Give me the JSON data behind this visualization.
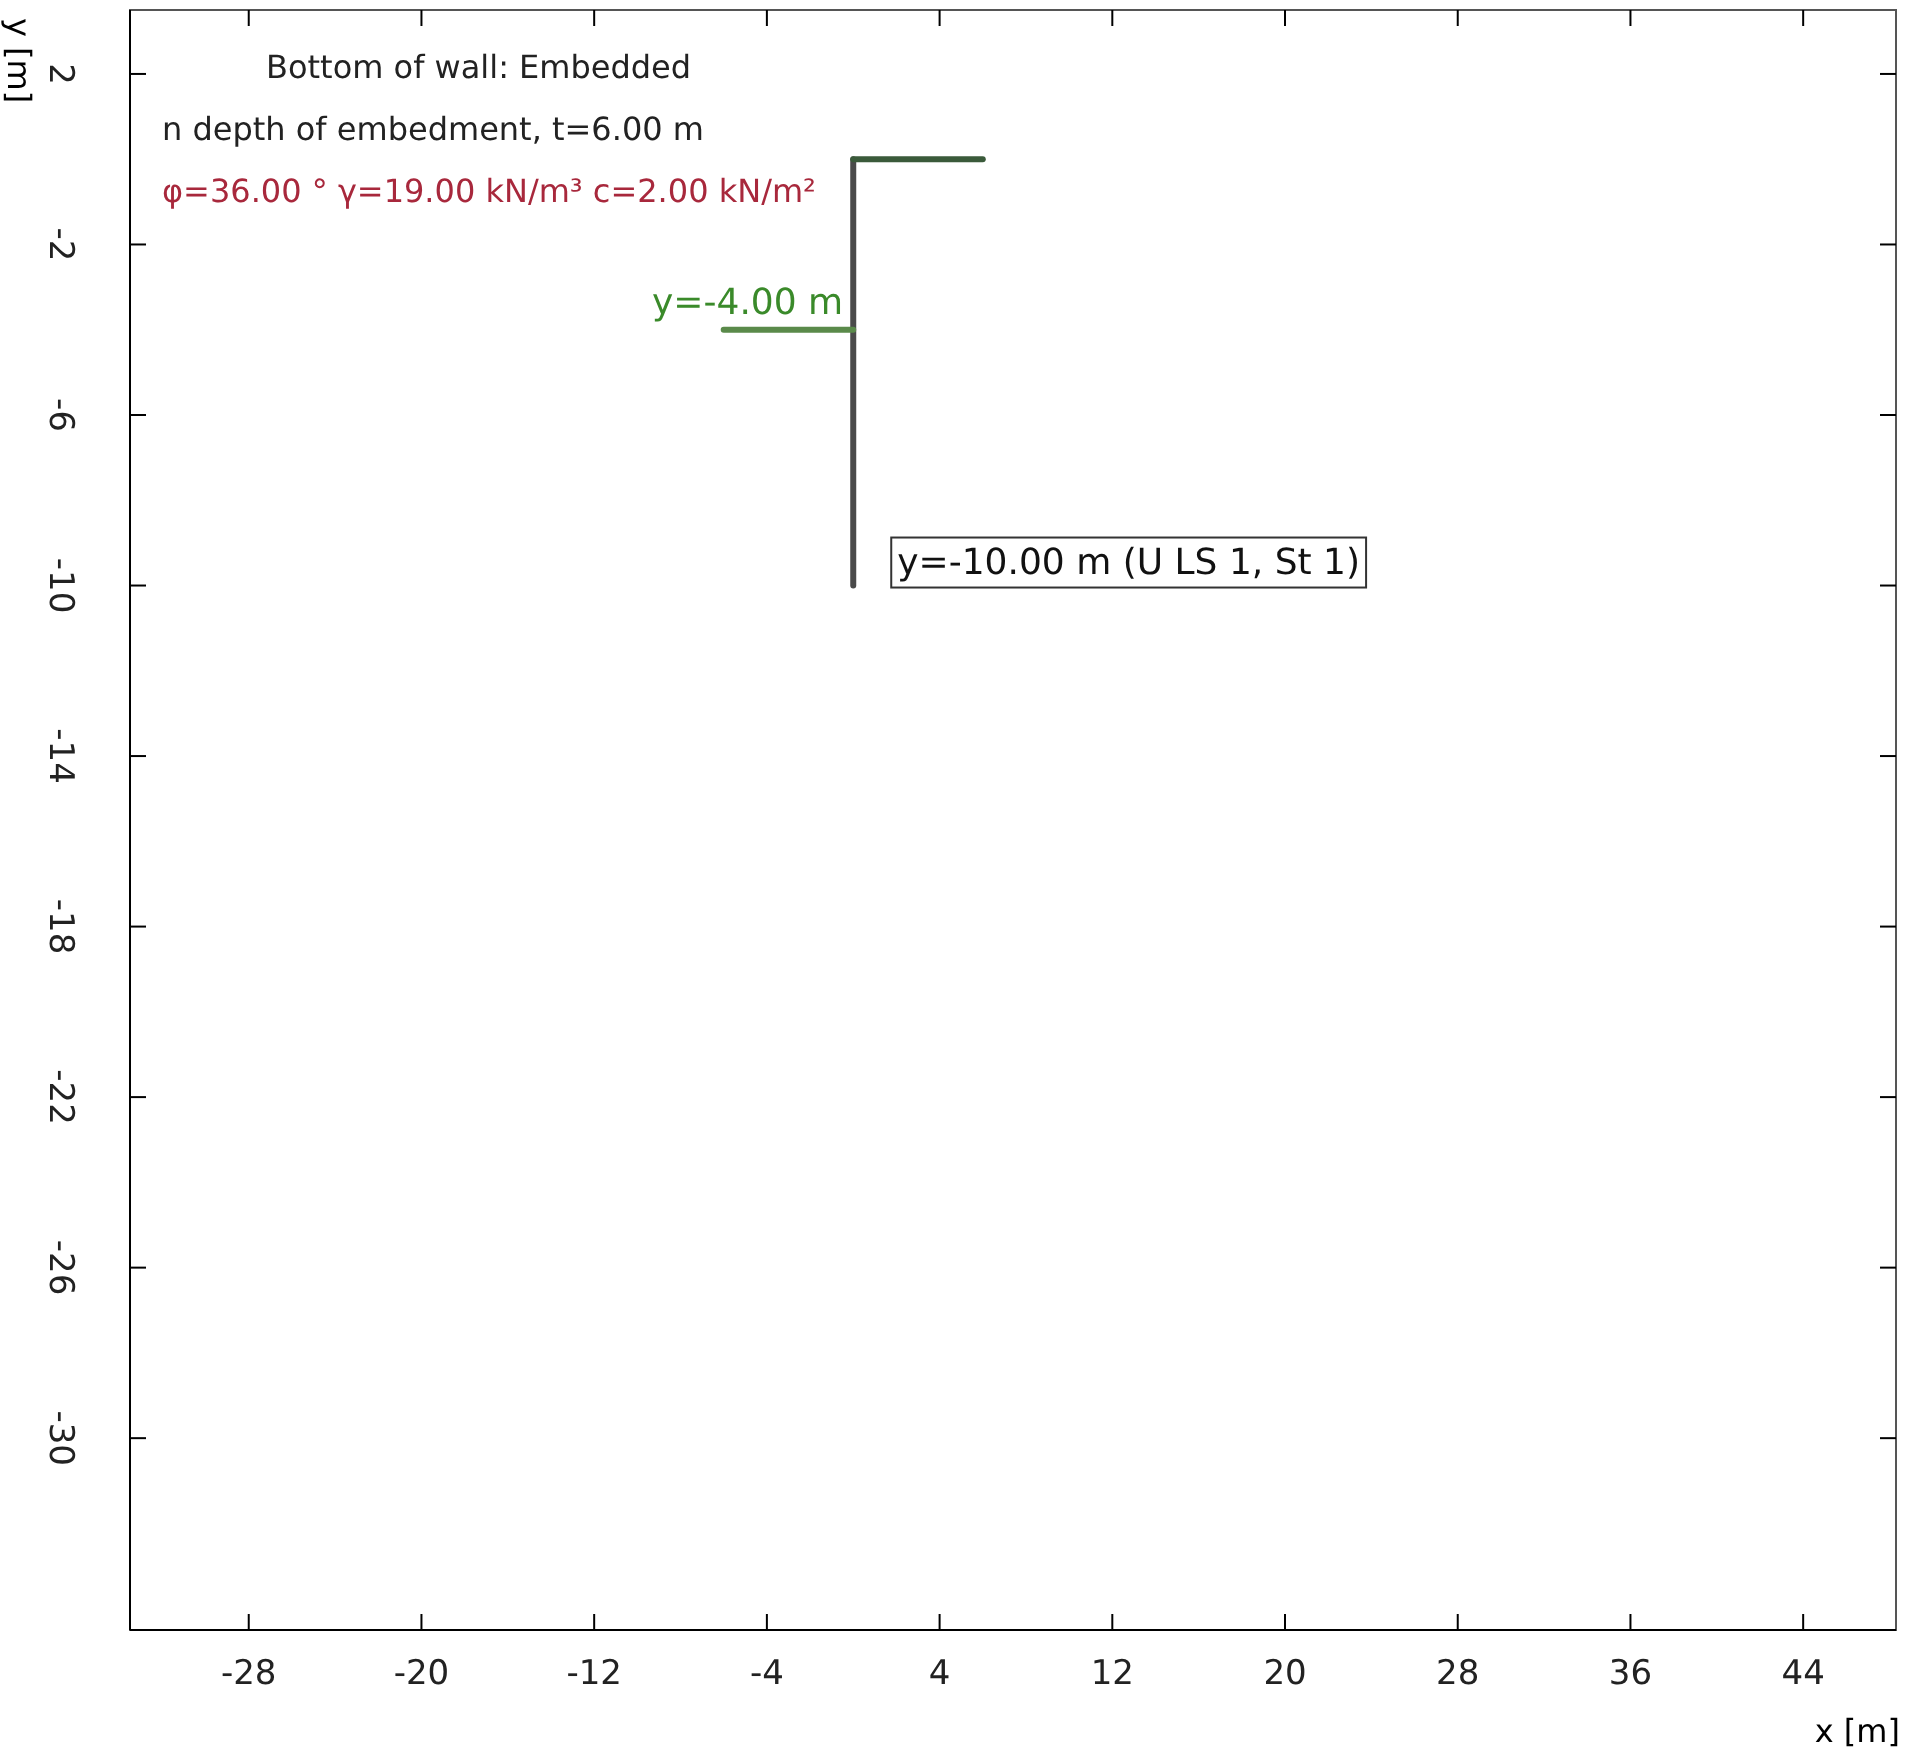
{
  "chart_data": {
    "type": "line",
    "xlabel": "x [m]",
    "ylabel": "y [m]",
    "xlim": [
      -33.5,
      48.3
    ],
    "ylim": [
      -34.5,
      3.5
    ],
    "xticks": [
      -28,
      -20,
      -12,
      -4,
      4,
      12,
      20,
      28,
      36,
      44
    ],
    "yticks": [
      -30,
      -26,
      -22,
      -18,
      -14,
      -10,
      -6,
      -2,
      2
    ],
    "series": [
      {
        "color": "#4a4a4a",
        "x": [
          0,
          0
        ],
        "values": [
          0,
          -10
        ]
      },
      {
        "color": "#3a5a3a",
        "x": [
          0,
          6
        ],
        "values": [
          0,
          0
        ]
      },
      {
        "color": "#5a8a4a",
        "x": [
          -6,
          0
        ],
        "values": [
          -4,
          -4
        ]
      }
    ],
    "annotations": [
      "Bottom of wall: Embedded",
      "n depth of embedment, t=6.00 m",
      "φ=36.00 ° γ=19.00 kN/m³ c=2.00 kN/m²",
      {
        "text": "y=-4.00 m",
        "x": 0,
        "y": -4
      },
      {
        "text": "y=-10.00 m (U LS 1, St 1)",
        "x": 0,
        "y": -10
      }
    ],
    "grid": false
  }
}
